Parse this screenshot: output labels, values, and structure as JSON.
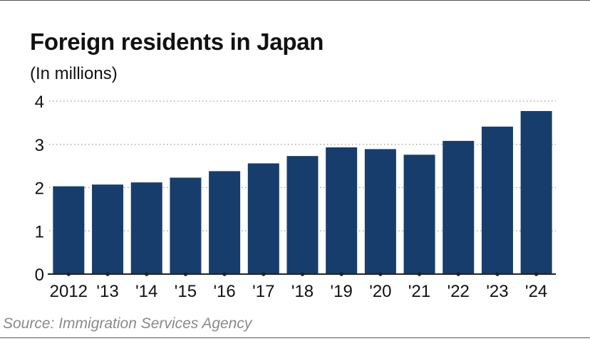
{
  "chart_data": {
    "type": "bar",
    "title": "Foreign residents in Japan",
    "subtitle": "(In millions)",
    "categories": [
      "2012",
      "'13",
      "'14",
      "'15",
      "'16",
      "'17",
      "'18",
      "'19",
      "'20",
      "'21",
      "'22",
      "'23",
      "'24"
    ],
    "values": [
      2.03,
      2.07,
      2.12,
      2.23,
      2.38,
      2.56,
      2.73,
      2.93,
      2.89,
      2.76,
      3.08,
      3.41,
      3.77
    ],
    "ylim": [
      0,
      4
    ],
    "yticks": [
      "0",
      "1",
      "2",
      "3",
      "4"
    ],
    "grid": true,
    "bar_color": "#173d6c",
    "grid_color": "#9a9a9a",
    "axis_color": "#222222"
  },
  "source": "Source: Immigration Services Agency"
}
